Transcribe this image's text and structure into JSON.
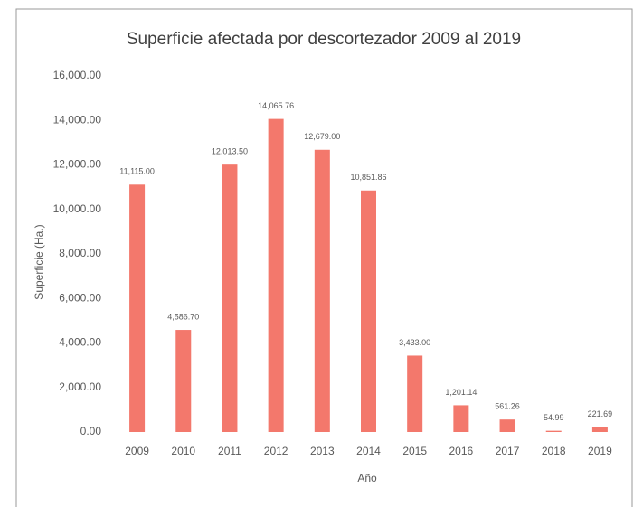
{
  "chart_data": {
    "type": "bar",
    "title": "Superficie afectada por descortezador 2009 al 2019",
    "xlabel": "Año",
    "ylabel": "Superficie (Ha.)",
    "categories": [
      "2009",
      "2010",
      "2011",
      "2012",
      "2013",
      "2014",
      "2015",
      "2016",
      "2017",
      "2018",
      "2019"
    ],
    "values": [
      11115.0,
      4586.7,
      12013.5,
      14065.76,
      12679.0,
      10851.86,
      3433.0,
      1201.14,
      561.26,
      54.99,
      221.69
    ],
    "value_labels": [
      "11,115.00",
      "4,586.70",
      "12,013.50",
      "14,065.76",
      "12,679.00",
      "10,851.86",
      "3,433.00",
      "1,201.14",
      "561.26",
      "54.99",
      "221.69"
    ],
    "color": "#f3786c",
    "ylim": [
      0,
      16000
    ],
    "yticks": [
      {
        "value": 0,
        "label": "0.00"
      },
      {
        "value": 2000,
        "label": "2,000.00"
      },
      {
        "value": 4000,
        "label": "4,000.00"
      },
      {
        "value": 6000,
        "label": "6,000.00"
      },
      {
        "value": 8000,
        "label": "8,000.00"
      },
      {
        "value": 10000,
        "label": "10,000.00"
      },
      {
        "value": 12000,
        "label": "12,000.00"
      },
      {
        "value": 14000,
        "label": "14,000.00"
      },
      {
        "value": 16000,
        "label": "16,000.00"
      }
    ],
    "grid": false
  }
}
